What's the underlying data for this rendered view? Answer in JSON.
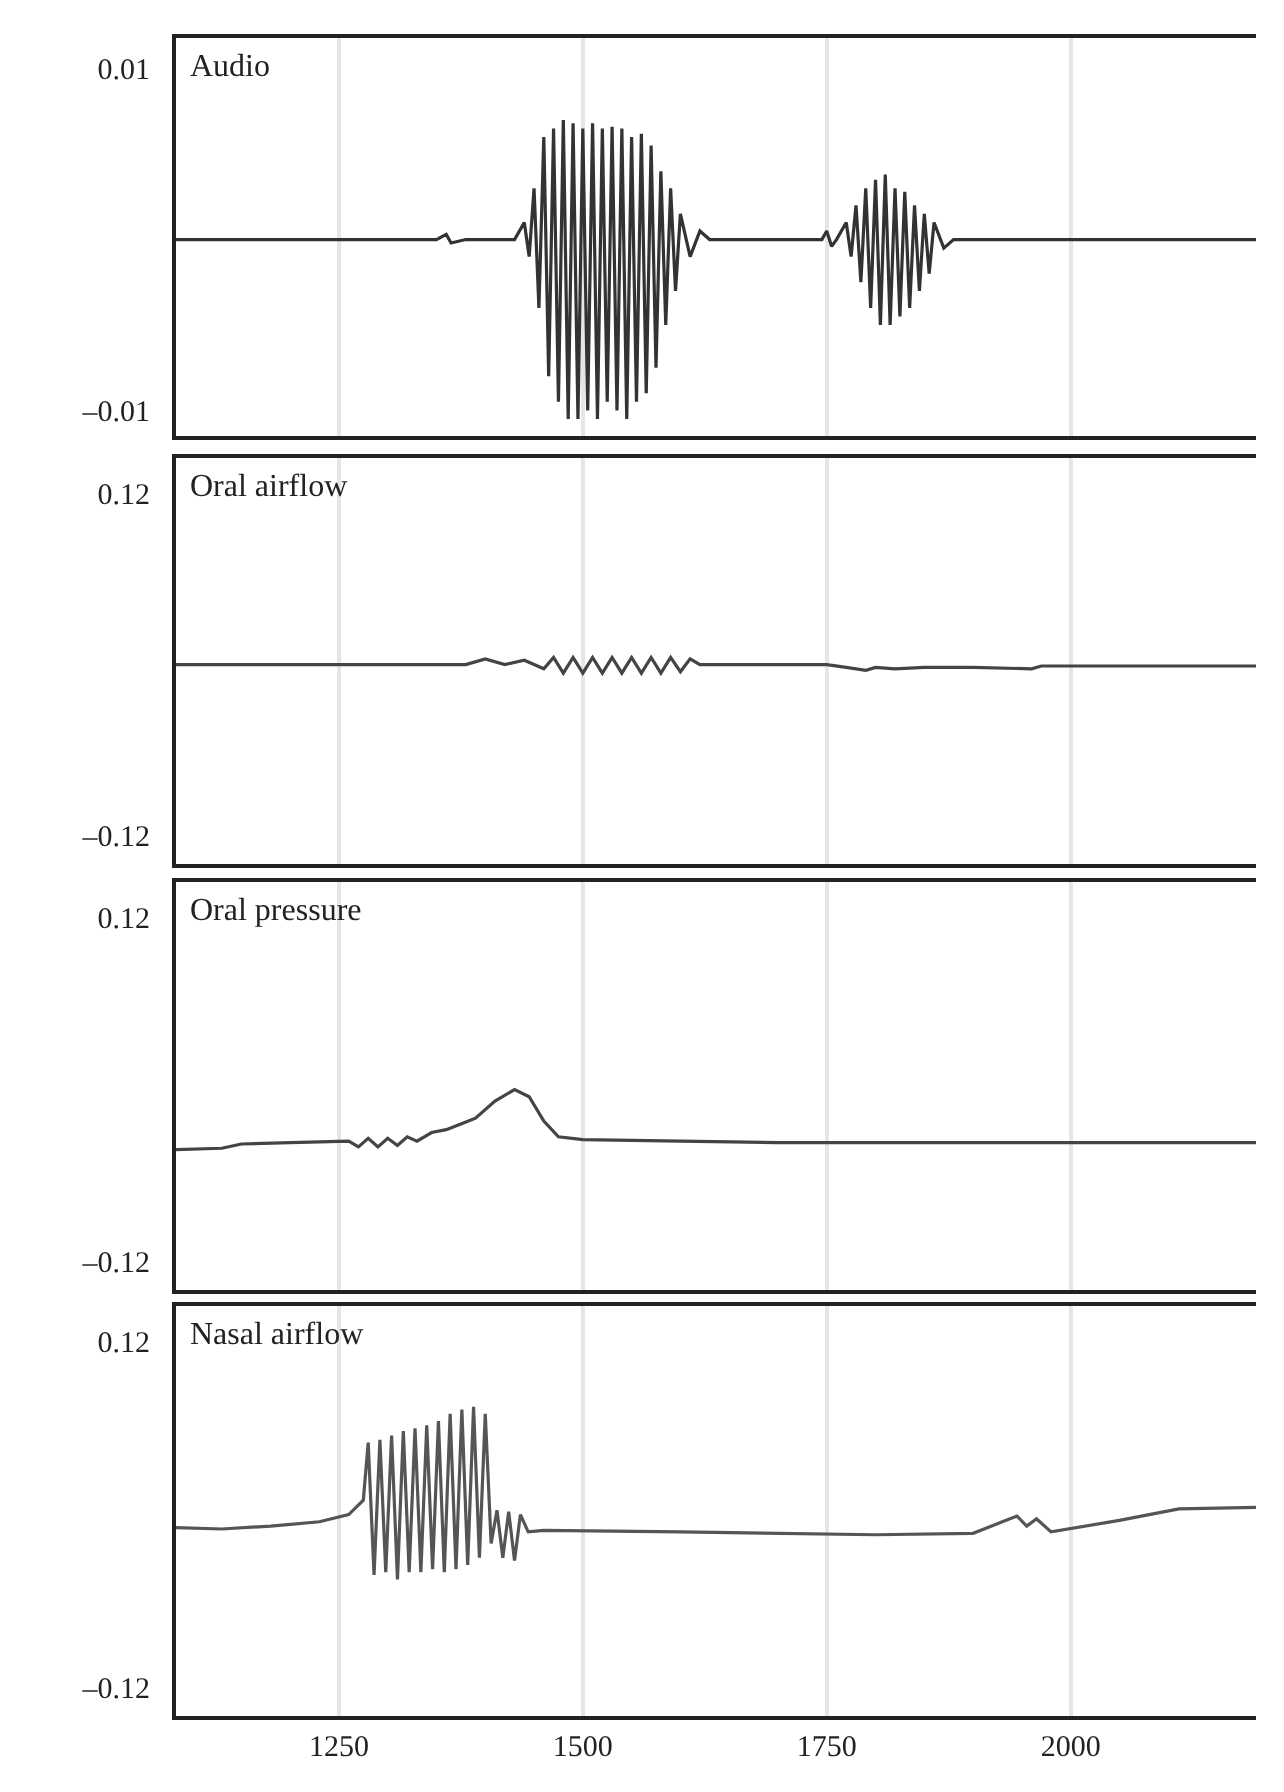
{
  "chart_data": [
    {
      "type": "line",
      "title": "Audio",
      "color": "#333333",
      "grid": "x",
      "tick_labels": "y",
      "xlim": [
        1083,
        2190
      ],
      "xticks": [
        1250,
        1500,
        1750,
        2000
      ],
      "ylim": [
        -0.0115,
        0.0118
      ],
      "yticks": [
        {
          "value": 0.01,
          "label": "0.01"
        },
        {
          "value": -0.01,
          "label": "–0.01"
        }
      ],
      "x": [
        1083,
        1350,
        1360,
        1365,
        1380,
        1430,
        1440,
        1445,
        1450,
        1455,
        1460,
        1465,
        1470,
        1475,
        1480,
        1485,
        1490,
        1495,
        1500,
        1505,
        1510,
        1515,
        1520,
        1525,
        1530,
        1535,
        1540,
        1545,
        1550,
        1555,
        1560,
        1565,
        1570,
        1575,
        1580,
        1585,
        1590,
        1595,
        1600,
        1610,
        1620,
        1630,
        1745,
        1750,
        1755,
        1760,
        1770,
        1775,
        1780,
        1785,
        1790,
        1795,
        1800,
        1805,
        1810,
        1815,
        1820,
        1825,
        1830,
        1835,
        1840,
        1845,
        1850,
        1855,
        1860,
        1870,
        1880,
        2190
      ],
      "values": [
        0,
        0,
        0.0003,
        -0.0002,
        0,
        0,
        0.001,
        -0.001,
        0.003,
        -0.004,
        0.006,
        -0.008,
        0.0065,
        -0.0095,
        0.007,
        -0.0105,
        0.0068,
        -0.0105,
        0.0065,
        -0.01,
        0.0068,
        -0.0105,
        0.0065,
        -0.0095,
        0.0066,
        -0.01,
        0.0065,
        -0.0105,
        0.006,
        -0.0095,
        0.0062,
        -0.009,
        0.0055,
        -0.0075,
        0.004,
        -0.005,
        0.003,
        -0.003,
        0.0015,
        -0.001,
        0.0005,
        0,
        0,
        0.0005,
        -0.0004,
        0,
        0.001,
        -0.001,
        0.002,
        -0.0025,
        0.003,
        -0.004,
        0.0035,
        -0.005,
        0.0038,
        -0.005,
        0.003,
        -0.0045,
        0.0028,
        -0.004,
        0.002,
        -0.003,
        0.0015,
        -0.002,
        0.001,
        -0.0005,
        0,
        0
      ]
    },
    {
      "type": "line",
      "title": "Oral airflow",
      "color": "#444444",
      "grid": "x",
      "tick_labels": "y",
      "xlim": [
        1083,
        2190
      ],
      "xticks": [
        1250,
        1500,
        1750,
        2000
      ],
      "ylim": [
        -0.14,
        0.145
      ],
      "yticks": [
        {
          "value": 0.12,
          "label": "0.12"
        },
        {
          "value": -0.12,
          "label": "–0.12"
        }
      ],
      "x": [
        1083,
        1380,
        1400,
        1420,
        1440,
        1460,
        1470,
        1480,
        1490,
        1500,
        1510,
        1520,
        1530,
        1540,
        1550,
        1560,
        1570,
        1580,
        1590,
        1600,
        1610,
        1620,
        1640,
        1750,
        1770,
        1790,
        1800,
        1820,
        1850,
        1900,
        1960,
        1970,
        2190
      ],
      "values": [
        0,
        0,
        0.004,
        0,
        0.003,
        -0.003,
        0.005,
        -0.006,
        0.005,
        -0.006,
        0.005,
        -0.006,
        0.005,
        -0.006,
        0.005,
        -0.006,
        0.005,
        -0.006,
        0.005,
        -0.005,
        0.004,
        0,
        0,
        0,
        -0.002,
        -0.004,
        -0.002,
        -0.003,
        -0.002,
        -0.002,
        -0.003,
        -0.001,
        -0.001
      ]
    },
    {
      "type": "line",
      "title": "Oral pressure",
      "color": "#444444",
      "grid": "x",
      "tick_labels": "y",
      "xlim": [
        1083,
        2190
      ],
      "xticks": [
        1250,
        1500,
        1750,
        2000
      ],
      "ylim": [
        -0.14,
        0.145
      ],
      "yticks": [
        {
          "value": 0.12,
          "label": "0.12"
        },
        {
          "value": -0.12,
          "label": "–0.12"
        }
      ],
      "x": [
        1083,
        1130,
        1150,
        1200,
        1260,
        1270,
        1280,
        1290,
        1300,
        1310,
        1320,
        1330,
        1345,
        1360,
        1375,
        1390,
        1410,
        1430,
        1445,
        1460,
        1475,
        1500,
        1600,
        1700,
        2190
      ],
      "values": [
        -0.042,
        -0.041,
        -0.038,
        -0.037,
        -0.036,
        -0.04,
        -0.034,
        -0.04,
        -0.034,
        -0.039,
        -0.033,
        -0.036,
        -0.03,
        -0.028,
        -0.024,
        -0.02,
        -0.008,
        0.0,
        -0.005,
        -0.022,
        -0.033,
        -0.035,
        -0.036,
        -0.037,
        -0.037
      ]
    },
    {
      "type": "line",
      "title": "Nasal airflow",
      "color": "#555555",
      "grid": "x",
      "xlim": [
        1083,
        2190
      ],
      "xticks": [
        1250,
        1500,
        1750,
        2000
      ],
      "ylim": [
        -0.14,
        0.145
      ],
      "yticks": [
        {
          "value": 0.12,
          "label": "0.12"
        },
        {
          "value": -0.12,
          "label": "–0.12"
        }
      ],
      "x": [
        1083,
        1130,
        1180,
        1230,
        1260,
        1275,
        1280,
        1286,
        1292,
        1298,
        1304,
        1310,
        1316,
        1322,
        1328,
        1334,
        1340,
        1346,
        1352,
        1358,
        1364,
        1370,
        1376,
        1382,
        1388,
        1394,
        1400,
        1406,
        1412,
        1418,
        1424,
        1430,
        1436,
        1444,
        1460,
        1600,
        1800,
        1900,
        1930,
        1945,
        1955,
        1965,
        1980,
        2050,
        2111,
        2190
      ],
      "values": [
        -0.009,
        -0.01,
        -0.008,
        -0.005,
        0.0,
        0.01,
        0.05,
        -0.042,
        0.052,
        -0.04,
        0.055,
        -0.045,
        0.058,
        -0.04,
        0.06,
        -0.04,
        0.062,
        -0.038,
        0.065,
        -0.04,
        0.07,
        -0.038,
        0.073,
        -0.035,
        0.075,
        -0.03,
        0.07,
        -0.02,
        0.003,
        -0.03,
        0.002,
        -0.032,
        0.0,
        -0.012,
        -0.011,
        -0.012,
        -0.014,
        -0.013,
        -0.005,
        -0.001,
        -0.008,
        -0.003,
        -0.012,
        -0.004,
        0.004,
        0.005
      ]
    }
  ]
}
